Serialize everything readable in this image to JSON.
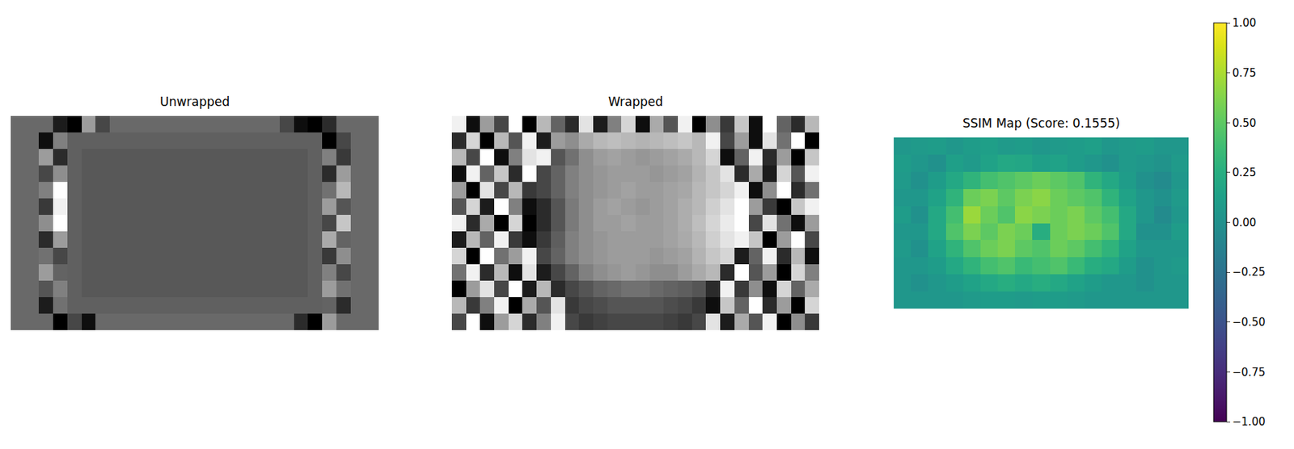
{
  "chart_data": [
    {
      "type": "heatmap",
      "title": "Unwrapped",
      "color": "gray",
      "tick_labels": false,
      "cells": [
        [
          0.42,
          0.42,
          0.42,
          0.15,
          0.05,
          0.6,
          0.3,
          0.42,
          0.42,
          0.42,
          0.42,
          0.42,
          0.42,
          0.42,
          0.42,
          0.42,
          0.42,
          0.42,
          0.42,
          0.3,
          0.1,
          0.05,
          0.2,
          0.42,
          0.42,
          0.42
        ],
        [
          0.42,
          0.42,
          0.1,
          0.5,
          0.39,
          0.39,
          0.39,
          0.39,
          0.39,
          0.39,
          0.39,
          0.39,
          0.39,
          0.39,
          0.39,
          0.39,
          0.39,
          0.39,
          0.39,
          0.39,
          0.39,
          0.39,
          0.05,
          0.3,
          0.42,
          0.42
        ],
        [
          0.42,
          0.42,
          0.6,
          0.2,
          0.39,
          0.36,
          0.36,
          0.36,
          0.36,
          0.36,
          0.36,
          0.36,
          0.36,
          0.36,
          0.36,
          0.36,
          0.36,
          0.36,
          0.36,
          0.36,
          0.36,
          0.39,
          0.5,
          0.25,
          0.42,
          0.42
        ],
        [
          0.42,
          0.42,
          0.3,
          0.55,
          0.39,
          0.36,
          0.36,
          0.36,
          0.36,
          0.36,
          0.36,
          0.36,
          0.36,
          0.36,
          0.36,
          0.36,
          0.36,
          0.36,
          0.36,
          0.36,
          0.36,
          0.39,
          0.2,
          0.6,
          0.42,
          0.42
        ],
        [
          0.42,
          0.42,
          0.5,
          0.95,
          0.39,
          0.36,
          0.36,
          0.36,
          0.36,
          0.36,
          0.36,
          0.36,
          0.36,
          0.36,
          0.36,
          0.36,
          0.36,
          0.36,
          0.36,
          0.36,
          0.36,
          0.39,
          0.45,
          0.7,
          0.42,
          0.42
        ],
        [
          0.42,
          0.42,
          0.25,
          0.9,
          0.39,
          0.36,
          0.36,
          0.36,
          0.36,
          0.36,
          0.36,
          0.36,
          0.36,
          0.36,
          0.36,
          0.36,
          0.36,
          0.36,
          0.36,
          0.36,
          0.36,
          0.39,
          0.6,
          0.35,
          0.42,
          0.42
        ],
        [
          0.42,
          0.42,
          0.55,
          0.95,
          0.39,
          0.36,
          0.36,
          0.36,
          0.36,
          0.36,
          0.36,
          0.36,
          0.36,
          0.36,
          0.36,
          0.36,
          0.36,
          0.36,
          0.36,
          0.36,
          0.36,
          0.39,
          0.3,
          0.75,
          0.42,
          0.42
        ],
        [
          0.42,
          0.42,
          0.2,
          0.6,
          0.39,
          0.36,
          0.36,
          0.36,
          0.36,
          0.36,
          0.36,
          0.36,
          0.36,
          0.36,
          0.36,
          0.36,
          0.36,
          0.36,
          0.36,
          0.36,
          0.36,
          0.39,
          0.65,
          0.4,
          0.42,
          0.42
        ],
        [
          0.42,
          0.42,
          0.45,
          0.3,
          0.39,
          0.36,
          0.36,
          0.36,
          0.36,
          0.36,
          0.36,
          0.36,
          0.36,
          0.36,
          0.36,
          0.36,
          0.36,
          0.36,
          0.36,
          0.36,
          0.36,
          0.39,
          0.25,
          0.55,
          0.42,
          0.42
        ],
        [
          0.42,
          0.42,
          0.6,
          0.4,
          0.39,
          0.36,
          0.36,
          0.36,
          0.36,
          0.36,
          0.36,
          0.36,
          0.36,
          0.36,
          0.36,
          0.36,
          0.36,
          0.36,
          0.36,
          0.36,
          0.36,
          0.39,
          0.5,
          0.3,
          0.42,
          0.42
        ],
        [
          0.42,
          0.42,
          0.35,
          0.5,
          0.39,
          0.36,
          0.36,
          0.36,
          0.36,
          0.36,
          0.36,
          0.36,
          0.36,
          0.36,
          0.36,
          0.36,
          0.36,
          0.36,
          0.36,
          0.36,
          0.36,
          0.39,
          0.6,
          0.45,
          0.42,
          0.42
        ],
        [
          0.42,
          0.42,
          0.15,
          0.45,
          0.39,
          0.39,
          0.39,
          0.39,
          0.39,
          0.39,
          0.39,
          0.39,
          0.39,
          0.39,
          0.39,
          0.39,
          0.39,
          0.39,
          0.39,
          0.39,
          0.39,
          0.39,
          0.4,
          0.2,
          0.42,
          0.42
        ],
        [
          0.42,
          0.42,
          0.42,
          0.05,
          0.3,
          0.1,
          0.42,
          0.42,
          0.42,
          0.42,
          0.42,
          0.42,
          0.42,
          0.42,
          0.42,
          0.42,
          0.42,
          0.42,
          0.42,
          0.42,
          0.2,
          0.05,
          0.6,
          0.42,
          0.42,
          0.42
        ]
      ]
    },
    {
      "type": "heatmap",
      "title": "Wrapped",
      "color": "gray",
      "tick_labels": false,
      "cells": [
        [
          0.9,
          0.1,
          0.6,
          0.3,
          0.95,
          0.05,
          0.7,
          0.4,
          0.2,
          0.85,
          0.15,
          0.5,
          0.8,
          0.1,
          0.65,
          0.35,
          0.9,
          0.05,
          0.55,
          0.25,
          0.75,
          0.1,
          0.95,
          0.4,
          0.2,
          0.7
        ],
        [
          0.2,
          0.8,
          0.05,
          0.7,
          0.35,
          0.9,
          0.15,
          0.6,
          0.55,
          0.65,
          0.7,
          0.72,
          0.7,
          0.68,
          0.7,
          0.72,
          0.75,
          0.7,
          0.9,
          0.3,
          0.6,
          0.1,
          0.85,
          0.45,
          0.95,
          0.05
        ],
        [
          0.7,
          0.3,
          0.95,
          0.1,
          0.5,
          0.85,
          0.9,
          0.35,
          0.45,
          0.55,
          0.6,
          0.62,
          0.6,
          0.58,
          0.6,
          0.62,
          0.65,
          0.7,
          0.8,
          0.1,
          0.4,
          0.9,
          0.2,
          0.6,
          0.05,
          0.75
        ],
        [
          0.1,
          0.9,
          0.4,
          0.75,
          0.2,
          0.95,
          0.3,
          0.4,
          0.5,
          0.55,
          0.58,
          0.6,
          0.6,
          0.6,
          0.58,
          0.6,
          0.62,
          0.68,
          0.75,
          0.85,
          0.2,
          0.65,
          0.15,
          0.8,
          0.35,
          0.9
        ],
        [
          0.6,
          0.05,
          0.85,
          0.3,
          0.7,
          0.25,
          0.3,
          0.4,
          0.5,
          0.55,
          0.58,
          0.6,
          0.62,
          0.6,
          0.6,
          0.62,
          0.64,
          0.7,
          0.75,
          0.8,
          0.9,
          0.1,
          0.55,
          0.95,
          0.2,
          0.45
        ],
        [
          0.35,
          0.8,
          0.15,
          0.95,
          0.5,
          0.1,
          0.2,
          0.35,
          0.48,
          0.55,
          0.6,
          0.62,
          0.6,
          0.58,
          0.6,
          0.62,
          0.66,
          0.7,
          0.78,
          0.85,
          0.95,
          0.6,
          0.25,
          0.05,
          0.75,
          0.9
        ],
        [
          0.9,
          0.2,
          0.65,
          0.05,
          0.8,
          0.05,
          0.2,
          0.35,
          0.48,
          0.55,
          0.6,
          0.6,
          0.62,
          0.6,
          0.6,
          0.62,
          0.66,
          0.72,
          0.8,
          0.88,
          0.95,
          0.3,
          0.85,
          0.45,
          0.1,
          0.6
        ],
        [
          0.15,
          0.7,
          0.4,
          0.9,
          0.25,
          0.1,
          0.25,
          0.38,
          0.5,
          0.55,
          0.58,
          0.6,
          0.6,
          0.6,
          0.6,
          0.62,
          0.65,
          0.7,
          0.78,
          0.85,
          0.9,
          0.75,
          0.05,
          0.6,
          0.95,
          0.3
        ],
        [
          0.8,
          0.05,
          0.95,
          0.45,
          0.6,
          0.9,
          0.3,
          0.4,
          0.5,
          0.55,
          0.58,
          0.6,
          0.6,
          0.6,
          0.58,
          0.6,
          0.62,
          0.68,
          0.75,
          0.8,
          0.15,
          0.4,
          0.9,
          0.2,
          0.7,
          0.1
        ],
        [
          0.45,
          0.9,
          0.2,
          0.7,
          0.1,
          0.85,
          0.15,
          0.3,
          0.4,
          0.5,
          0.55,
          0.58,
          0.6,
          0.58,
          0.55,
          0.55,
          0.6,
          0.65,
          0.7,
          0.2,
          0.95,
          0.35,
          0.6,
          0.05,
          0.8,
          0.5
        ],
        [
          0.05,
          0.6,
          0.85,
          0.3,
          0.95,
          0.15,
          0.7,
          0.2,
          0.3,
          0.35,
          0.4,
          0.42,
          0.45,
          0.45,
          0.42,
          0.4,
          0.38,
          0.35,
          0.2,
          0.9,
          0.25,
          0.55,
          0.1,
          0.8,
          0.4,
          0.65
        ],
        [
          0.7,
          0.25,
          0.5,
          0.9,
          0.05,
          0.65,
          0.35,
          0.85,
          0.25,
          0.3,
          0.32,
          0.35,
          0.35,
          0.35,
          0.35,
          0.32,
          0.3,
          0.25,
          0.1,
          0.75,
          0.4,
          0.95,
          0.2,
          0.6,
          0.05,
          0.8
        ],
        [
          0.3,
          0.95,
          0.1,
          0.6,
          0.8,
          0.2,
          0.5,
          0.9,
          0.3,
          0.25,
          0.28,
          0.3,
          0.3,
          0.3,
          0.3,
          0.28,
          0.25,
          0.3,
          0.85,
          0.15,
          0.65,
          0.35,
          0.9,
          0.05,
          0.55,
          0.25
        ]
      ]
    },
    {
      "type": "heatmap",
      "title": "SSIM Map (Score: 0.1555)",
      "color": "viridis",
      "tick_labels": false,
      "cells": [
        [
          0.05,
          0.08,
          0.1,
          0.05,
          0.1,
          0.12,
          0.08,
          0.1,
          0.05,
          0.08,
          0.1,
          0.12,
          0.05,
          0.08,
          0.1,
          0.05,
          0.05
        ],
        [
          0.1,
          0.05,
          0.0,
          0.12,
          0.08,
          0.15,
          0.2,
          0.18,
          0.12,
          0.15,
          0.1,
          0.05,
          0.0,
          0.08,
          0.05,
          0.02,
          0.08
        ],
        [
          0.08,
          0.0,
          0.1,
          0.2,
          0.3,
          0.4,
          0.45,
          0.5,
          0.55,
          0.5,
          0.45,
          0.3,
          0.2,
          0.1,
          0.0,
          -0.05,
          0.05
        ],
        [
          0.05,
          0.05,
          0.15,
          0.3,
          0.55,
          0.6,
          0.5,
          0.6,
          0.65,
          0.55,
          0.5,
          0.45,
          0.3,
          0.15,
          0.05,
          0.0,
          0.08
        ],
        [
          0.1,
          0.0,
          0.2,
          0.4,
          0.7,
          0.55,
          0.45,
          0.65,
          0.6,
          0.55,
          0.6,
          0.5,
          0.4,
          0.2,
          0.05,
          -0.05,
          0.05
        ],
        [
          0.05,
          0.05,
          0.2,
          0.45,
          0.6,
          0.5,
          0.6,
          0.55,
          0.25,
          0.55,
          0.6,
          0.55,
          0.45,
          0.2,
          0.0,
          0.0,
          0.1
        ],
        [
          0.08,
          0.0,
          0.15,
          0.3,
          0.45,
          0.55,
          0.6,
          0.5,
          0.45,
          0.55,
          0.5,
          0.4,
          0.3,
          0.15,
          0.05,
          0.05,
          0.05
        ],
        [
          0.05,
          0.05,
          0.1,
          0.2,
          0.3,
          0.4,
          0.45,
          0.35,
          0.4,
          0.45,
          0.35,
          0.25,
          0.2,
          0.1,
          0.0,
          0.05,
          0.08
        ],
        [
          0.05,
          0.0,
          0.05,
          0.1,
          0.15,
          0.2,
          0.25,
          0.2,
          0.25,
          0.2,
          0.15,
          0.1,
          0.05,
          0.05,
          0.0,
          0.05,
          0.05
        ],
        [
          0.05,
          0.05,
          0.05,
          0.05,
          0.08,
          0.1,
          0.1,
          0.08,
          0.1,
          0.1,
          0.08,
          0.05,
          0.05,
          0.05,
          0.05,
          0.05,
          0.05
        ]
      ],
      "colorbar": {
        "range": [
          -1,
          1
        ],
        "ticks": [
          {
            "value": -1,
            "label": "−1.00"
          },
          {
            "value": -0.75,
            "label": "−0.75"
          },
          {
            "value": -0.5,
            "label": "−0.50"
          },
          {
            "value": -0.25,
            "label": "−0.25"
          },
          {
            "value": 0,
            "label": "0.00"
          },
          {
            "value": 0.25,
            "label": "0.25"
          },
          {
            "value": 0.5,
            "label": "0.50"
          },
          {
            "value": 0.75,
            "label": "0.75"
          },
          {
            "value": 1,
            "label": "1.00"
          }
        ]
      }
    }
  ]
}
